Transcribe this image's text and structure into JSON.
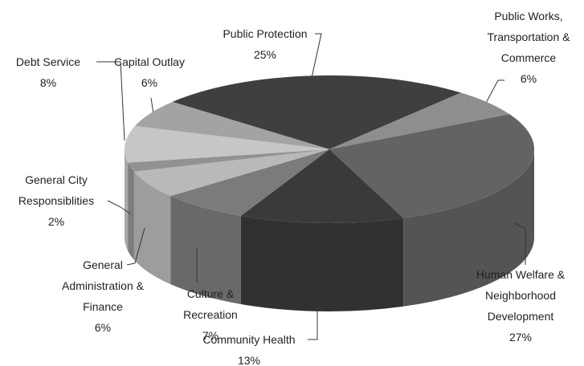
{
  "chart_data": {
    "type": "pie3d",
    "categories": [
      "Public Protection",
      "Public Works, Transportation & Commerce",
      "Human Welfare & Neighborhood Development",
      "Community Health",
      "Culture & Recreation",
      "General Administration & Finance",
      "General City Responsiblities",
      "Debt Service",
      "Capital Outlay"
    ],
    "values": [
      25,
      6,
      27,
      13,
      7,
      6,
      2,
      8,
      6
    ],
    "value_labels": [
      "25%",
      "6%",
      "27%",
      "13%",
      "7%",
      "6%",
      "2%",
      "8%",
      "6%"
    ],
    "colors": [
      "#3f3f3f",
      "#8e8e8e",
      "#636363",
      "#3a3a3a",
      "#7b7b7b",
      "#b9b9b9",
      "#929292",
      "#c6c6c6",
      "#a3a3a3"
    ]
  }
}
